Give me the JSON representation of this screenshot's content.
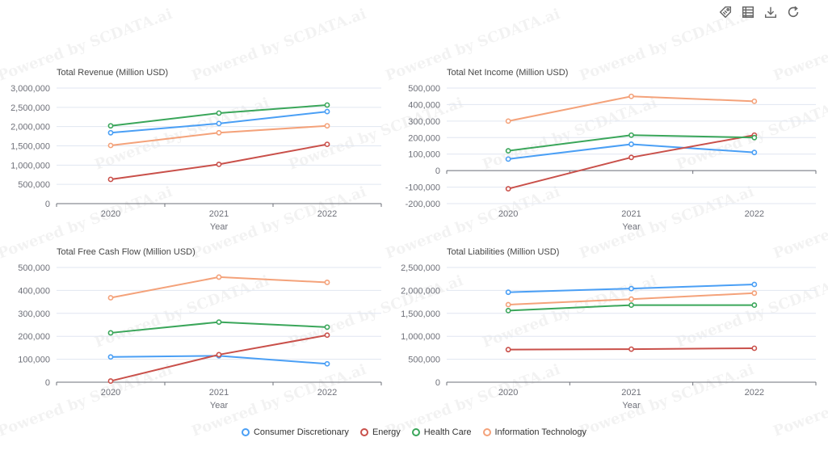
{
  "watermark": "Powered by SCDATA.ai",
  "toolbox": {
    "icons": [
      "tag-icon",
      "data-view-icon",
      "download-icon",
      "refresh-icon"
    ]
  },
  "colors": {
    "Consumer Discretionary": "#4a9ff5",
    "Energy": "#c9504a",
    "Health Care": "#3aa65a",
    "Information Technology": "#f4a27a",
    "axis": "#6e7079",
    "grid": "#e0e6f1",
    "text": "#6e7079",
    "title": "#464646"
  },
  "legend": {
    "items": [
      "Consumer Discretionary",
      "Energy",
      "Health Care",
      "Information Technology"
    ]
  },
  "chart_data": [
    {
      "type": "line",
      "title": "Total Revenue (Million USD)",
      "xlabel": "Year",
      "ylabel": "",
      "categories": [
        "2020",
        "2021",
        "2022"
      ],
      "ylim": [
        0,
        3000000
      ],
      "yticks": [
        0,
        500000,
        1000000,
        1500000,
        2000000,
        2500000,
        3000000
      ],
      "series": [
        {
          "name": "Consumer Discretionary",
          "values": [
            1840000,
            2080000,
            2390000
          ]
        },
        {
          "name": "Energy",
          "values": [
            630000,
            1020000,
            1540000
          ]
        },
        {
          "name": "Health Care",
          "values": [
            2020000,
            2350000,
            2560000
          ]
        },
        {
          "name": "Information Technology",
          "values": [
            1510000,
            1840000,
            2020000
          ]
        }
      ]
    },
    {
      "type": "line",
      "title": "Total Net Income (Million USD)",
      "xlabel": "Year",
      "ylabel": "",
      "categories": [
        "2020",
        "2021",
        "2022"
      ],
      "ylim": [
        -200000,
        500000
      ],
      "yticks": [
        -200000,
        -100000,
        0,
        100000,
        200000,
        300000,
        400000,
        500000
      ],
      "series": [
        {
          "name": "Consumer Discretionary",
          "values": [
            70000,
            160000,
            110000
          ]
        },
        {
          "name": "Energy",
          "values": [
            -110000,
            80000,
            215000
          ]
        },
        {
          "name": "Health Care",
          "values": [
            120000,
            215000,
            200000
          ]
        },
        {
          "name": "Information Technology",
          "values": [
            300000,
            450000,
            420000
          ]
        }
      ]
    },
    {
      "type": "line",
      "title": "Total Free Cash Flow (Million USD)",
      "xlabel": "Year",
      "ylabel": "",
      "categories": [
        "2020",
        "2021",
        "2022"
      ],
      "ylim": [
        0,
        500000
      ],
      "yticks": [
        0,
        100000,
        200000,
        300000,
        400000,
        500000
      ],
      "series": [
        {
          "name": "Consumer Discretionary",
          "values": [
            110000,
            115000,
            80000
          ]
        },
        {
          "name": "Energy",
          "values": [
            5000,
            120000,
            205000
          ]
        },
        {
          "name": "Health Care",
          "values": [
            215000,
            262000,
            240000
          ]
        },
        {
          "name": "Information Technology",
          "values": [
            368000,
            458000,
            435000
          ]
        }
      ]
    },
    {
      "type": "line",
      "title": "Total Liabilities (Million USD)",
      "xlabel": "Year",
      "ylabel": "",
      "categories": [
        "2020",
        "2021",
        "2022"
      ],
      "ylim": [
        0,
        2500000
      ],
      "yticks": [
        0,
        500000,
        1000000,
        1500000,
        2000000,
        2500000
      ],
      "series": [
        {
          "name": "Consumer Discretionary",
          "values": [
            1960000,
            2040000,
            2130000
          ]
        },
        {
          "name": "Energy",
          "values": [
            710000,
            720000,
            740000
          ]
        },
        {
          "name": "Health Care",
          "values": [
            1560000,
            1680000,
            1680000
          ]
        },
        {
          "name": "Information Technology",
          "values": [
            1690000,
            1810000,
            1940000
          ]
        }
      ]
    }
  ]
}
